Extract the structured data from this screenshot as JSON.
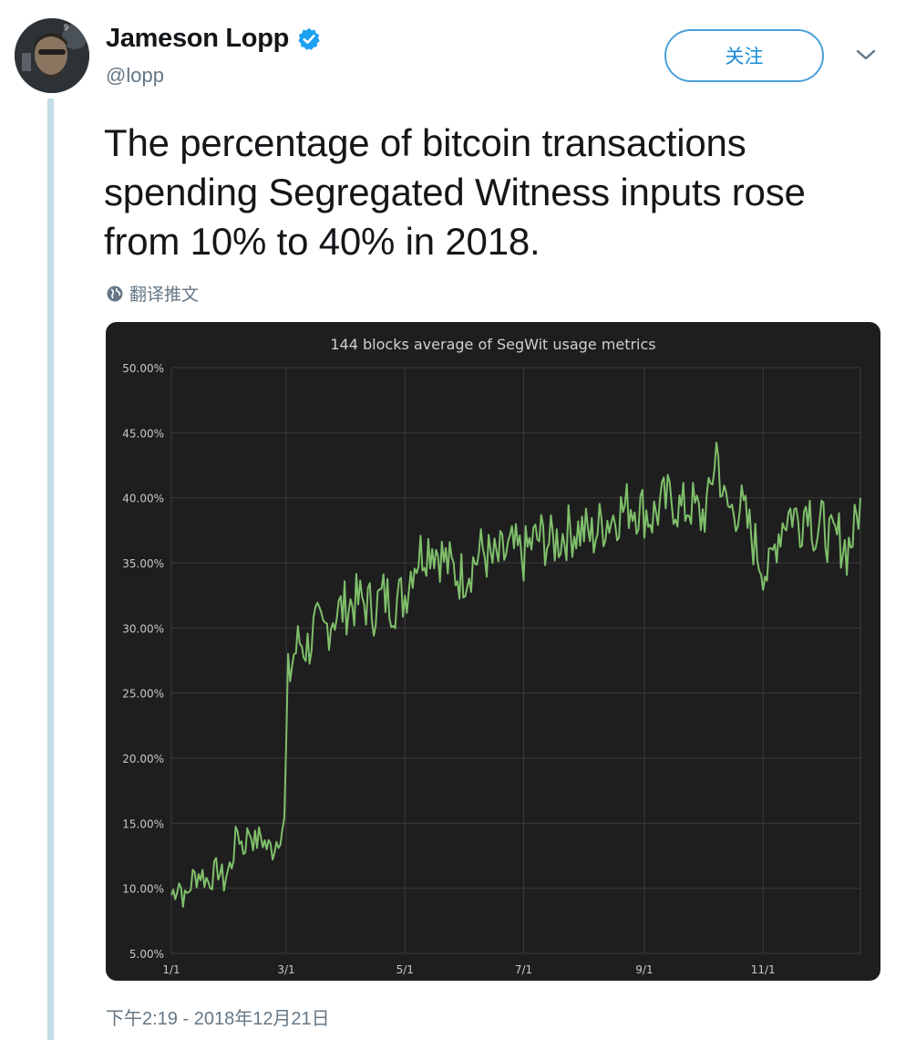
{
  "author": {
    "name": "Jameson Lopp",
    "handle": "@lopp",
    "verified": true,
    "avatar_badge": "9"
  },
  "follow_button": {
    "label": "关注"
  },
  "tweet": {
    "text": "The percentage of bitcoin transactions spending Segregated Witness inputs rose from 10% to 40% in 2018.",
    "translate_label": "翻译推文",
    "timestamp": "下午2:19 - 2018年12月21日"
  },
  "icons": {
    "verified": "verified-badge-icon",
    "translate": "globe-icon",
    "menu": "chevron-down-icon"
  },
  "colors": {
    "accent": "#1b8ad6",
    "chart_background": "#1e1e1f",
    "series_line": "#7fbf6a",
    "thread_line": "#c4dbe8"
  },
  "chart_data": {
    "type": "line",
    "title": "144 blocks average of SegWit usage metrics",
    "xlabel": "",
    "ylabel": "",
    "x_ticks": [
      "1/1",
      "3/1",
      "5/1",
      "7/1",
      "9/1",
      "11/1"
    ],
    "y_ticks": [
      "5.00%",
      "10.00%",
      "15.00%",
      "20.00%",
      "25.00%",
      "30.00%",
      "35.00%",
      "40.00%",
      "45.00%",
      "50.00%"
    ],
    "ylim": [
      5,
      50
    ],
    "xlim": [
      "2018-01-01",
      "2018-12-21"
    ],
    "grid": true,
    "series": [
      {
        "values": [
          [
            "2018-01-01",
            9.5
          ],
          [
            "2018-01-05",
            10.5
          ],
          [
            "2018-01-08",
            9.0
          ],
          [
            "2018-01-12",
            10.8
          ],
          [
            "2018-01-16",
            11.2
          ],
          [
            "2018-01-20",
            10.5
          ],
          [
            "2018-01-25",
            11.5
          ],
          [
            "2018-01-28",
            10.5
          ],
          [
            "2018-02-01",
            12.0
          ],
          [
            "2018-02-04",
            14.5
          ],
          [
            "2018-02-07",
            13.0
          ],
          [
            "2018-02-10",
            14.5
          ],
          [
            "2018-02-13",
            13.5
          ],
          [
            "2018-02-16",
            14.0
          ],
          [
            "2018-02-19",
            13.2
          ],
          [
            "2018-02-22",
            13.0
          ],
          [
            "2018-02-25",
            14.0
          ],
          [
            "2018-02-28",
            15.0
          ],
          [
            "2018-03-02",
            26.0
          ],
          [
            "2018-03-05",
            28.0
          ],
          [
            "2018-03-08",
            29.0
          ],
          [
            "2018-03-12",
            28.5
          ],
          [
            "2018-03-16",
            30.0
          ],
          [
            "2018-03-20",
            29.5
          ],
          [
            "2018-03-25",
            31.0
          ],
          [
            "2018-03-30",
            31.5
          ],
          [
            "2018-04-05",
            32.0
          ],
          [
            "2018-04-10",
            32.0
          ],
          [
            "2018-04-15",
            31.5
          ],
          [
            "2018-04-20",
            32.5
          ],
          [
            "2018-04-25",
            32.0
          ],
          [
            "2018-05-01",
            32.5
          ],
          [
            "2018-05-05",
            35.0
          ],
          [
            "2018-05-10",
            36.0
          ],
          [
            "2018-05-15",
            36.5
          ],
          [
            "2018-05-20",
            35.5
          ],
          [
            "2018-05-25",
            34.5
          ],
          [
            "2018-05-30",
            34.0
          ],
          [
            "2018-06-05",
            35.0
          ],
          [
            "2018-06-10",
            36.0
          ],
          [
            "2018-06-15",
            35.0
          ],
          [
            "2018-06-20",
            35.5
          ],
          [
            "2018-06-25",
            36.0
          ],
          [
            "2018-07-01",
            35.5
          ],
          [
            "2018-07-05",
            36.5
          ],
          [
            "2018-07-10",
            37.0
          ],
          [
            "2018-07-15",
            36.5
          ],
          [
            "2018-07-20",
            37.0
          ],
          [
            "2018-07-25",
            37.5
          ],
          [
            "2018-08-01",
            37.5
          ],
          [
            "2018-08-05",
            37.0
          ],
          [
            "2018-08-10",
            38.0
          ],
          [
            "2018-08-15",
            38.5
          ],
          [
            "2018-08-20",
            39.0
          ],
          [
            "2018-08-25",
            39.5
          ],
          [
            "2018-09-01",
            39.0
          ],
          [
            "2018-09-05",
            38.5
          ],
          [
            "2018-09-10",
            39.5
          ],
          [
            "2018-09-15",
            40.0
          ],
          [
            "2018-09-20",
            39.0
          ],
          [
            "2018-09-25",
            39.5
          ],
          [
            "2018-09-30",
            38.5
          ],
          [
            "2018-10-04",
            39.5
          ],
          [
            "2018-10-08",
            44.0
          ],
          [
            "2018-10-12",
            39.5
          ],
          [
            "2018-10-16",
            39.0
          ],
          [
            "2018-10-20",
            39.5
          ],
          [
            "2018-10-25",
            37.5
          ],
          [
            "2018-10-30",
            35.5
          ],
          [
            "2018-11-04",
            34.0
          ],
          [
            "2018-11-08",
            37.0
          ],
          [
            "2018-11-12",
            38.5
          ],
          [
            "2018-11-16",
            39.0
          ],
          [
            "2018-11-20",
            38.0
          ],
          [
            "2018-11-24",
            40.0
          ],
          [
            "2018-11-28",
            37.0
          ],
          [
            "2018-12-02",
            38.0
          ],
          [
            "2018-12-06",
            36.5
          ],
          [
            "2018-12-10",
            37.0
          ],
          [
            "2018-12-14",
            36.0
          ],
          [
            "2018-12-18",
            37.5
          ],
          [
            "2018-12-21",
            40.0
          ]
        ]
      }
    ]
  }
}
